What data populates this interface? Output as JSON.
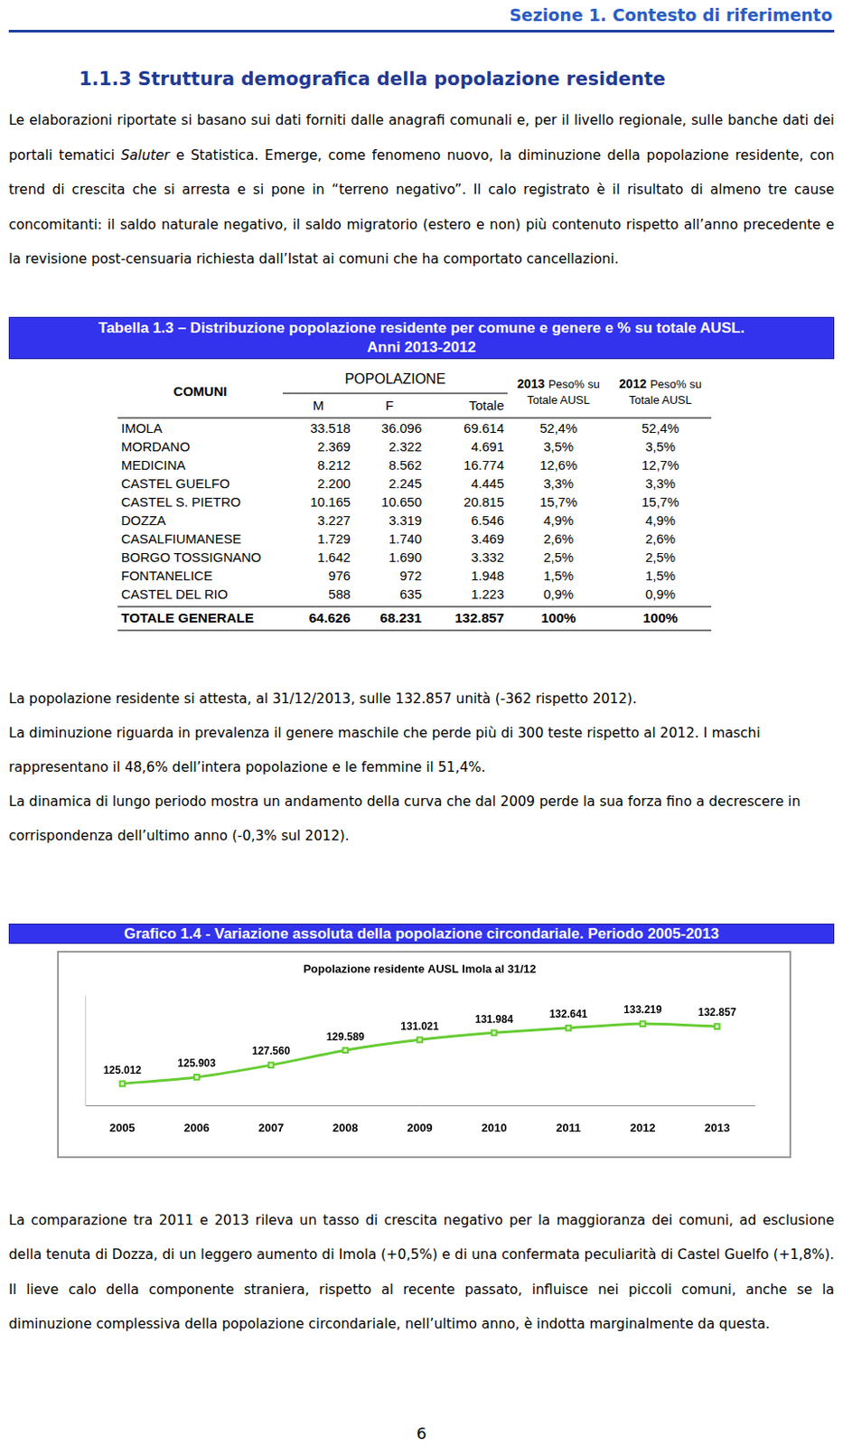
{
  "header": "Sezione 1. Contesto di riferimento",
  "section_title": "1.1.3 Struttura demografica della popolazione residente",
  "intro_paragraph": [
    {
      "text": "Le elaborazioni riportate si basano sui dati forniti dalle anagrafi comunali e, per il livello regionale, sulle banche dati dei portali tematici "
    },
    {
      "text": "Saluter",
      "italic": true
    },
    {
      "text": " e Statistica. Emerge, come fenomeno nuovo, la diminuzione della popolazione residente, con trend di crescita che si arresta e si pone in “terreno negativo”. Il calo registrato è il risultato di almeno tre cause concomitanti: il saldo naturale negativo, il saldo migratorio (estero e non) più contenuto rispetto all’anno precedente e la revisione post-censuaria richiesta dall’Istat ai comuni che ha comportato cancellazioni."
    }
  ],
  "table": {
    "title": [
      "Tabella 1.3 – Distribuzione popolazione residente per comune e genere e % su totale AUSL.",
      "Anni 2013-2012"
    ],
    "header": {
      "comuni": "COMUNI",
      "popolazione": "POPOLAZIONE",
      "sub": [
        "M",
        "F",
        "Totale"
      ],
      "weights": [
        {
          "year": "2013",
          "label": "Peso% su Totale AUSL"
        },
        {
          "year": "2012",
          "label": "Peso% su Totale AUSL"
        }
      ]
    },
    "rows": [
      [
        "IMOLA",
        "33.518",
        "36.096",
        "69.614",
        "52,4%",
        "52,4%"
      ],
      [
        "MORDANO",
        "2.369",
        "2.322",
        "4.691",
        "3,5%",
        "3,5%"
      ],
      [
        "MEDICINA",
        "8.212",
        "8.562",
        "16.774",
        "12,6%",
        "12,7%"
      ],
      [
        "CASTEL GUELFO",
        "2.200",
        "2.245",
        "4.445",
        "3,3%",
        "3,3%"
      ],
      [
        "CASTEL S. PIETRO",
        "10.165",
        "10.650",
        "20.815",
        "15,7%",
        "15,7%"
      ],
      [
        "DOZZA",
        "3.227",
        "3.319",
        "6.546",
        "4,9%",
        "4,9%"
      ],
      [
        "CASALFIUMANESE",
        "1.729",
        "1.740",
        "3.469",
        "2,6%",
        "2,6%"
      ],
      [
        "BORGO TOSSIGNANO",
        "1.642",
        "1.690",
        "3.332",
        "2,5%",
        "2,5%"
      ],
      [
        "FONTANELICE",
        "976",
        "972",
        "1.948",
        "1,5%",
        "1,5%"
      ],
      [
        "CASTEL DEL RIO",
        "588",
        "635",
        "1.223",
        "0,9%",
        "0,9%"
      ]
    ],
    "total": [
      "TOTALE GENERALE",
      "64.626",
      "68.231",
      "132.857",
      "100%",
      "100%"
    ]
  },
  "middle_paragraphs": [
    "La popolazione residente si attesta, al 31/12/2013, sulle 132.857 unità (-362 rispetto 2012).",
    "La diminuzione riguarda in prevalenza il genere maschile che perde più di 300 teste rispetto al 2012. I maschi rappresentano il 48,6% dell’intera popolazione e le femmine il 51,4%.",
    "La dinamica di lungo periodo mostra un andamento della curva che dal 2009 perde la sua forza fino a decrescere in corrispondenza dell’ultimo anno (-0,3% sul 2012)."
  ],
  "chart_caption": "Grafico 1.4 - Variazione assoluta della popolazione circondariale. Periodo 2005-2013",
  "chart_data": {
    "type": "line",
    "title": "Popolazione residente AUSL Imola al 31/12",
    "categories": [
      "2005",
      "2006",
      "2007",
      "2008",
      "2009",
      "2010",
      "2011",
      "2012",
      "2013"
    ],
    "values": [
      125012,
      125903,
      127560,
      129589,
      131021,
      131984,
      132641,
      133219,
      132857
    ],
    "value_labels": [
      "125.012",
      "125.903",
      "127.560",
      "129.589",
      "131.021",
      "131.984",
      "132.641",
      "133.219",
      "132.857"
    ],
    "color": "#66cc33",
    "marker": "square",
    "ylim": [
      122000,
      137000
    ],
    "grid": false,
    "data_labels": true,
    "tick_labels": "x"
  },
  "final_paragraph": "La comparazione tra 2011 e 2013 rileva un tasso di crescita negativo per la maggioranza dei comuni, ad esclusione della tenuta di Dozza, di un leggero aumento di Imola (+0,5%) e di una confermata peculiarità di Castel Guelfo (+1,8%). Il lieve calo della componente straniera, rispetto al recente passato, influisce nei piccoli comuni, anche se la diminuzione complessiva della popolazione circondariale, nell’ultimo anno, è indotta marginalmente da questa.",
  "page_number": "6"
}
